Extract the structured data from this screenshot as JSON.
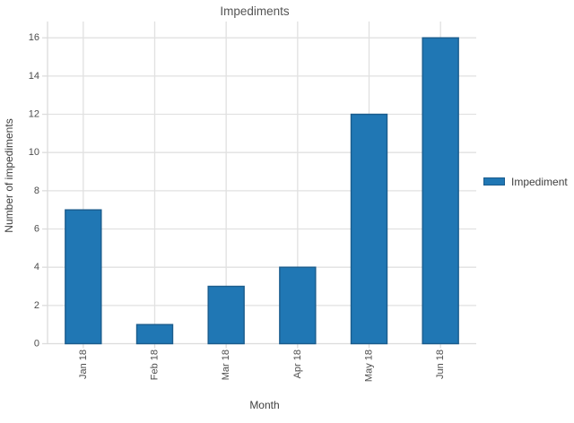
{
  "chart_data": {
    "type": "bar",
    "title": "Impediments",
    "xlabel": "Month",
    "ylabel": "Number of impediments",
    "categories": [
      "Jan 18",
      "Feb 18",
      "Mar 18",
      "Apr 18",
      "May 18",
      "Jun 18"
    ],
    "values": [
      7,
      1,
      3,
      4,
      12,
      16
    ],
    "series": [
      {
        "name": "Impediment",
        "values": [
          7,
          1,
          3,
          4,
          12,
          16
        ]
      }
    ],
    "legend": [
      "Impediment"
    ],
    "legend_position": "right",
    "grid": true,
    "ylim": [
      0,
      16.85
    ],
    "yticks": [
      0,
      2,
      4,
      6,
      8,
      10,
      12,
      14,
      16
    ],
    "colors": {
      "bar_fill": "#2077B4",
      "bar_stroke": "#1B5C8D",
      "grid": "#E1E1E1",
      "axis": "#DCDCDC",
      "tick_text": "#4D4D4D",
      "title_text": "#555555",
      "axis_title_text": "#3F3F3F"
    }
  }
}
